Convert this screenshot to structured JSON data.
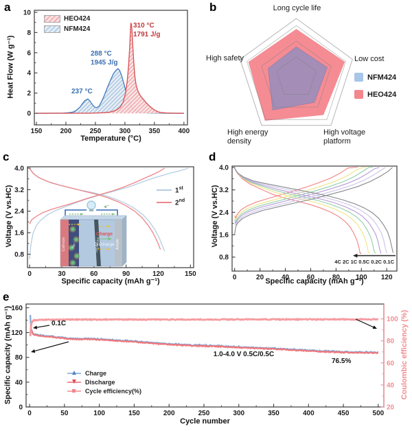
{
  "panel_labels": [
    "a",
    "b",
    "c",
    "d",
    "e"
  ],
  "chart_data": [
    {
      "id": "a",
      "type": "line",
      "xlabel": "Temperature (°C)",
      "ylabel": "Heat Flow (W g⁻¹)",
      "xlim": [
        146.5,
        406
      ],
      "ylim": [
        -1.15,
        10.2
      ],
      "x_ticks": [
        150,
        200,
        250,
        300,
        350,
        400
      ],
      "y_ticks": [
        0,
        2,
        4,
        6,
        8,
        10
      ],
      "legend": [
        {
          "label": "HEO424",
          "color": "#e0797d"
        },
        {
          "label": "NFM424",
          "color": "#7ba7d4"
        }
      ],
      "annotations": [
        {
          "lines": [
            "310 °C",
            "1791 J/g"
          ],
          "color": "#c0393d"
        },
        {
          "lines": [
            "288 °C",
            "1945 J/g"
          ],
          "color": "#3b6fb1"
        },
        {
          "lines": [
            "237 °C"
          ],
          "color": "#3b6fb1"
        }
      ],
      "series": [
        {
          "name": "NFM424",
          "color": "#4a82c4",
          "points": [
            [
              150,
              0
            ],
            [
              195,
              0.02
            ],
            [
              205,
              0.06
            ],
            [
              212,
              0.12
            ],
            [
              218,
              0.3
            ],
            [
              224,
              0.62
            ],
            [
              228,
              0.95
            ],
            [
              232,
              1.25
            ],
            [
              237,
              1.42
            ],
            [
              241,
              1.2
            ],
            [
              245,
              0.85
            ],
            [
              249,
              0.6
            ],
            [
              252,
              0.55
            ],
            [
              256,
              0.7
            ],
            [
              260,
              1.1
            ],
            [
              265,
              1.75
            ],
            [
              270,
              2.5
            ],
            [
              275,
              3.2
            ],
            [
              280,
              3.85
            ],
            [
              284,
              4.2
            ],
            [
              288,
              4.42
            ],
            [
              291,
              4.25
            ],
            [
              294,
              3.8
            ],
            [
              298,
              3.0
            ],
            [
              302,
              2.1
            ],
            [
              306,
              1.3
            ],
            [
              310,
              0.75
            ],
            [
              315,
              0.4
            ],
            [
              320,
              0.2
            ],
            [
              328,
              0.08
            ],
            [
              340,
              0.03
            ],
            [
              360,
              0.01
            ],
            [
              400,
              0
            ]
          ]
        },
        {
          "name": "HEO424",
          "color": "#d9575b",
          "points": [
            [
              150,
              0
            ],
            [
              240,
              0.01
            ],
            [
              262,
              0.05
            ],
            [
              275,
              0.12
            ],
            [
              285,
              0.3
            ],
            [
              292,
              0.6
            ],
            [
              297,
              1.1
            ],
            [
              301,
              2.0
            ],
            [
              304,
              3.2
            ],
            [
              306,
              4.6
            ],
            [
              308,
              6.4
            ],
            [
              310,
              8.9
            ],
            [
              311,
              8.85
            ],
            [
              312,
              8.2
            ],
            [
              313,
              7.0
            ],
            [
              315,
              5.0
            ],
            [
              317,
              3.6
            ],
            [
              319,
              2.8
            ],
            [
              322,
              2.2
            ],
            [
              326,
              1.75
            ],
            [
              331,
              1.4
            ],
            [
              336,
              1.05
            ],
            [
              341,
              0.75
            ],
            [
              346,
              0.5
            ],
            [
              351,
              0.3
            ],
            [
              356,
              0.15
            ],
            [
              362,
              0.07
            ],
            [
              370,
              0.03
            ],
            [
              385,
              0.01
            ],
            [
              400,
              0
            ]
          ]
        }
      ]
    },
    {
      "id": "b",
      "type": "radar",
      "axes": [
        "Long cycle life",
        "Low cost",
        "High voltage platform",
        "High energy density",
        "High safety"
      ],
      "rings": [
        0.35,
        0.62,
        0.88,
        1.0
      ],
      "series": [
        {
          "name": "HEO424",
          "color": "#f4868e",
          "values": [
            0.82,
            0.86,
            0.78,
            0.9,
            0.85
          ]
        },
        {
          "name": "NFM424",
          "color": "#8293c8",
          "values": [
            0.52,
            0.55,
            0.52,
            0.68,
            0.5
          ]
        }
      ],
      "legend": [
        {
          "label": "NFM424",
          "color": "#a8c6e8"
        },
        {
          "label": "HEO424",
          "color": "#f4868e"
        }
      ]
    },
    {
      "id": "c",
      "type": "line",
      "xlabel": "Specific capacity (mAh g⁻¹)",
      "ylabel": "Voltage (V vs.HC)",
      "xlim": [
        -2,
        153
      ],
      "ylim": [
        0.3,
        4.05
      ],
      "x_ticks": [
        0,
        30,
        60,
        90,
        120,
        150
      ],
      "y_ticks": [
        0.8,
        1.6,
        2.4,
        3.2,
        4.0
      ],
      "legend": [
        {
          "base": "1",
          "sup": "st",
          "color": "#b5cde2"
        },
        {
          "base": "2",
          "sup": "nd",
          "color": "#ef8489"
        }
      ],
      "series": [
        {
          "name": "1st-charge",
          "color": "#b5cde2",
          "points": [
            [
              0,
              0.62
            ],
            [
              1,
              1.1
            ],
            [
              3,
              1.55
            ],
            [
              6,
              1.85
            ],
            [
              10,
              2.05
            ],
            [
              16,
              2.25
            ],
            [
              24,
              2.42
            ],
            [
              33,
              2.56
            ],
            [
              45,
              2.74
            ],
            [
              57,
              2.9
            ],
            [
              70,
              3.05
            ],
            [
              82,
              3.18
            ],
            [
              94,
              3.32
            ],
            [
              106,
              3.5
            ],
            [
              118,
              3.66
            ],
            [
              130,
              3.8
            ],
            [
              140,
              3.9
            ],
            [
              148,
              4.0
            ]
          ]
        },
        {
          "name": "1st-discharge",
          "color": "#b5cde2",
          "points": [
            [
              0,
              3.97
            ],
            [
              4,
              3.78
            ],
            [
              10,
              3.62
            ],
            [
              20,
              3.45
            ],
            [
              32,
              3.32
            ],
            [
              45,
              3.2
            ],
            [
              58,
              3.1
            ],
            [
              70,
              2.98
            ],
            [
              80,
              2.85
            ],
            [
              90,
              2.68
            ],
            [
              98,
              2.5
            ],
            [
              106,
              2.26
            ],
            [
              112,
              2.0
            ],
            [
              117,
              1.7
            ],
            [
              121,
              1.4
            ],
            [
              124,
              1.1
            ],
            [
              126,
              0.92
            ]
          ]
        },
        {
          "name": "2nd-charge",
          "color": "#ef8489",
          "points": [
            [
              0,
              1.92
            ],
            [
              2,
              2.08
            ],
            [
              6,
              2.2
            ],
            [
              12,
              2.34
            ],
            [
              20,
              2.46
            ],
            [
              30,
              2.58
            ],
            [
              42,
              2.72
            ],
            [
              54,
              2.88
            ],
            [
              66,
              3.02
            ],
            [
              78,
              3.16
            ],
            [
              88,
              3.3
            ],
            [
              98,
              3.46
            ],
            [
              108,
              3.64
            ],
            [
              116,
              3.78
            ],
            [
              122,
              3.9
            ],
            [
              126,
              4.0
            ]
          ]
        },
        {
          "name": "2nd-discharge",
          "color": "#ef8489",
          "points": [
            [
              0,
              4.0
            ],
            [
              3,
              3.82
            ],
            [
              8,
              3.66
            ],
            [
              17,
              3.5
            ],
            [
              28,
              3.37
            ],
            [
              40,
              3.25
            ],
            [
              52,
              3.13
            ],
            [
              63,
              3.02
            ],
            [
              73,
              2.9
            ],
            [
              82,
              2.76
            ],
            [
              90,
              2.6
            ],
            [
              98,
              2.4
            ],
            [
              105,
              2.15
            ],
            [
              110,
              1.9
            ],
            [
              115,
              1.6
            ],
            [
              119,
              1.28
            ],
            [
              122,
              0.98
            ]
          ]
        }
      ],
      "inset": {
        "cathode": "Cathode",
        "separator": "Separator",
        "anode": "Anode",
        "charge": "Charge",
        "discharge": "Discharge",
        "na_ion": "Na⁺",
        "electron": "e⁻"
      }
    },
    {
      "id": "d",
      "type": "line",
      "xlabel": "Specific capacity (mAh g⁻¹)",
      "ylabel": "Voltage (V vs.HC)",
      "xlim": [
        -2,
        128
      ],
      "ylim": [
        0.3,
        4.05
      ],
      "x_ticks": [
        0,
        20,
        40,
        60,
        80,
        100,
        120
      ],
      "y_ticks": [
        0.8,
        1.6,
        2.4,
        3.2,
        4.0
      ],
      "rate_label": "4C 2C 1C 0.5C 0.2C 0.1C",
      "rates": [
        {
          "rate": "4C",
          "color": "#f28183",
          "discharge_capacity": 100,
          "charge_capacity": 97,
          "v_offset": 0.3,
          "charge_start": 2.28
        },
        {
          "rate": "2C",
          "color": "#ede485",
          "discharge_capacity": 106.5,
          "charge_capacity": 104,
          "v_offset": 0.22,
          "charge_start": 2.2
        },
        {
          "rate": "1C",
          "color": "#8fcfa6",
          "discharge_capacity": 111,
          "charge_capacity": 109,
          "v_offset": 0.16,
          "charge_start": 2.12
        },
        {
          "rate": "0.5C",
          "color": "#b49ad6",
          "discharge_capacity": 115.5,
          "charge_capacity": 114,
          "v_offset": 0.11,
          "charge_start": 2.06
        },
        {
          "rate": "0.2C",
          "color": "#cdc3e8",
          "discharge_capacity": 120,
          "charge_capacity": 119,
          "v_offset": 0.05,
          "charge_start": 2.0
        },
        {
          "rate": "0.1C",
          "color": "#85878a",
          "discharge_capacity": 125,
          "charge_capacity": 124.5,
          "v_offset": 0.0,
          "charge_start": 1.62
        }
      ],
      "charge_profile": [
        [
          0,
          1.62
        ],
        [
          0.008,
          1.9
        ],
        [
          0.02,
          2.02
        ],
        [
          0.05,
          2.18
        ],
        [
          0.1,
          2.32
        ],
        [
          0.18,
          2.47
        ],
        [
          0.28,
          2.6
        ],
        [
          0.38,
          2.73
        ],
        [
          0.48,
          2.86
        ],
        [
          0.58,
          3.0
        ],
        [
          0.68,
          3.15
        ],
        [
          0.78,
          3.32
        ],
        [
          0.86,
          3.5
        ],
        [
          0.92,
          3.68
        ],
        [
          0.97,
          3.85
        ],
        [
          1,
          4.0
        ]
      ],
      "discharge_profile": [
        [
          0,
          3.97
        ],
        [
          0.02,
          3.8
        ],
        [
          0.06,
          3.65
        ],
        [
          0.12,
          3.52
        ],
        [
          0.2,
          3.42
        ],
        [
          0.3,
          3.31
        ],
        [
          0.4,
          3.2
        ],
        [
          0.5,
          3.09
        ],
        [
          0.6,
          2.97
        ],
        [
          0.68,
          2.85
        ],
        [
          0.76,
          2.7
        ],
        [
          0.82,
          2.55
        ],
        [
          0.87,
          2.38
        ],
        [
          0.91,
          2.18
        ],
        [
          0.94,
          1.95
        ],
        [
          0.965,
          1.7
        ],
        [
          0.98,
          1.45
        ],
        [
          0.99,
          1.2
        ],
        [
          1,
          0.95
        ]
      ]
    },
    {
      "id": "e",
      "type": "line",
      "xlabel": "Cycle number",
      "ylabel_left": "Specific capacity (mAh g⁻¹)",
      "ylabel_right": "Coulombic efficiency (%)",
      "xlim": [
        -5,
        508
      ],
      "ylim_left": [
        0,
        166
      ],
      "ylim_right": [
        20,
        113.5
      ],
      "x_ticks": [
        0,
        50,
        100,
        150,
        200,
        250,
        300,
        350,
        400,
        450,
        500
      ],
      "y_ticks_left": [
        0,
        40,
        80,
        120,
        160
      ],
      "y_ticks_right": [
        20,
        40,
        60,
        80,
        100
      ],
      "right_axis_color": "#ef8f94",
      "annotations": {
        "initial_rate": "0.1C",
        "condition": "1.0-4.0 V 0.5C/0.5C",
        "retention": "76.5%"
      },
      "legend": [
        {
          "label": "Charge",
          "color": "#7fa8d4",
          "marker": "triangle-up"
        },
        {
          "label": "Discharge",
          "color": "#ef6a70",
          "marker": "triangle-down"
        },
        {
          "label": "Cycle efficiency(%)",
          "color": "#f49a9e",
          "marker": "square"
        }
      ],
      "cycles": 500,
      "charge_keypoints": [
        [
          1,
          148
        ],
        [
          2,
          128
        ],
        [
          3,
          124
        ],
        [
          5,
          118
        ],
        [
          10,
          116.5
        ],
        [
          30,
          114
        ],
        [
          60,
          110.5
        ],
        [
          90,
          110
        ],
        [
          120,
          108
        ],
        [
          150,
          106
        ],
        [
          180,
          103
        ],
        [
          210,
          101
        ],
        [
          240,
          99.5
        ],
        [
          270,
          98.5
        ],
        [
          300,
          97
        ],
        [
          330,
          95.5
        ],
        [
          360,
          94
        ],
        [
          390,
          92
        ],
        [
          420,
          90
        ],
        [
          450,
          89
        ],
        [
          480,
          88.5
        ],
        [
          500,
          88
        ]
      ],
      "discharge_keypoints": [
        [
          1,
          124
        ],
        [
          2,
          123.5
        ],
        [
          3,
          122.5
        ],
        [
          5,
          117
        ],
        [
          10,
          115.5
        ],
        [
          30,
          113
        ],
        [
          60,
          109.5
        ],
        [
          90,
          109
        ],
        [
          120,
          107
        ],
        [
          150,
          105
        ],
        [
          180,
          102
        ],
        [
          210,
          100
        ],
        [
          240,
          98.5
        ],
        [
          270,
          97.5
        ],
        [
          300,
          96
        ],
        [
          330,
          94.5
        ],
        [
          360,
          93
        ],
        [
          390,
          91
        ],
        [
          420,
          89
        ],
        [
          450,
          88
        ],
        [
          480,
          87.5
        ],
        [
          500,
          87
        ]
      ],
      "efficiency_keypoints": [
        [
          1,
          84
        ],
        [
          2,
          93
        ],
        [
          3,
          96.5
        ],
        [
          5,
          98.6
        ],
        [
          15,
          99.2
        ],
        [
          60,
          99.4
        ],
        [
          200,
          99.4
        ],
        [
          350,
          99.5
        ],
        [
          500,
          99.6
        ]
      ]
    }
  ]
}
